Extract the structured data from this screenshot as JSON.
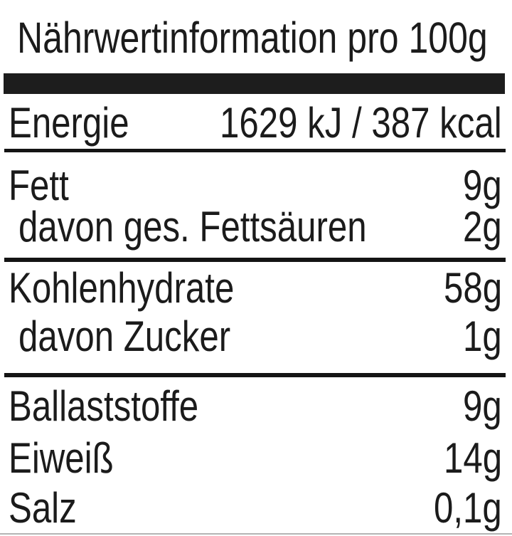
{
  "label": {
    "title": "Nährwertinformation pro 100g",
    "rows": [
      {
        "name": "Energie",
        "value": "1629 kJ / 387 kcal",
        "indent": false
      },
      {
        "name": "Fett",
        "value": "9g",
        "indent": false
      },
      {
        "name": "davon ges. Fettsäuren",
        "value": "2g",
        "indent": true
      },
      {
        "name": "Kohlenhydrate",
        "value": "58g",
        "indent": false
      },
      {
        "name": "davon Zucker",
        "value": "1g",
        "indent": true
      },
      {
        "name": "Ballaststoffe",
        "value": "9g",
        "indent": false
      },
      {
        "name": "Eiweiß",
        "value": "14g",
        "indent": false
      },
      {
        "name": "Salz",
        "value": "0,1g",
        "indent": false
      }
    ],
    "colors": {
      "background": "#ffffff",
      "text": "#1b1b1b",
      "bar": "#1d1d1d",
      "rule": "#141414",
      "bottomrule": "#b4b4b4"
    }
  }
}
